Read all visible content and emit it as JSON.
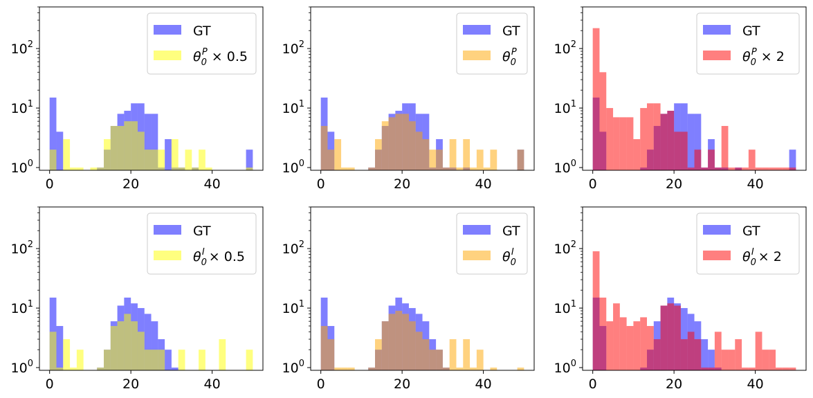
{
  "colors": {
    "gt": "#0000ff",
    "half": "#ffff00",
    "base": "#ffa500",
    "double": "#ff0000",
    "bar_alpha": 0.5
  },
  "chart_data": [
    {
      "type": "histogram",
      "scale_label": "×0.5",
      "row": "P",
      "x_ticks": [
        0,
        20,
        40
      ],
      "xlim": [
        -2.5,
        52.5
      ],
      "yscale": "log",
      "ylim": [
        0.9,
        500
      ],
      "y_ticks": [
        1,
        10,
        100
      ],
      "y_tick_labels": [
        {
          "base": "10",
          "exp": "0"
        },
        {
          "base": "10",
          "exp": "1"
        },
        {
          "base": "10",
          "exp": "2"
        }
      ],
      "legend_position": "top-right",
      "legend": [
        {
          "label": "GT",
          "color_key": "gt"
        },
        {
          "label_prefix": "θ",
          "label_sub": "0",
          "label_sup": "P",
          "label_suffix": " × 0.5",
          "color_key": "half"
        }
      ],
      "bin_edges_start": 0,
      "bin_width": 1.667,
      "series": [
        {
          "name": "GT",
          "color_key": "gt",
          "counts": [
            15,
            4,
            0,
            0,
            0,
            0,
            0,
            1,
            2,
            5,
            8,
            9,
            12,
            12,
            8,
            8,
            1,
            3,
            1,
            1,
            0,
            1,
            0,
            0,
            0,
            0,
            0,
            0,
            0,
            2
          ]
        },
        {
          "name": "θ0P × 0.5",
          "color_key": "half",
          "counts": [
            2,
            0,
            3,
            1,
            1,
            0,
            1,
            1,
            3,
            5,
            5,
            6,
            6,
            4,
            2,
            2,
            2,
            0,
            3,
            1,
            2,
            1,
            2,
            1,
            0,
            0,
            0,
            0,
            0,
            1
          ]
        }
      ]
    },
    {
      "type": "histogram",
      "scale_label": "×1",
      "row": "P",
      "x_ticks": [
        0,
        20,
        40
      ],
      "xlim": [
        -2.5,
        52.5
      ],
      "yscale": "log",
      "ylim": [
        0.9,
        500
      ],
      "y_ticks": [
        1,
        10,
        100
      ],
      "y_tick_labels": [
        {
          "base": "10",
          "exp": "0"
        },
        {
          "base": "10",
          "exp": "1"
        },
        {
          "base": "10",
          "exp": "2"
        }
      ],
      "legend_position": "top-right",
      "legend": [
        {
          "label": "GT",
          "color_key": "gt"
        },
        {
          "label_prefix": "θ",
          "label_sub": "0",
          "label_sup": "P",
          "label_suffix": "",
          "color_key": "base"
        }
      ],
      "bin_edges_start": 0,
      "bin_width": 1.667,
      "series": [
        {
          "name": "GT",
          "color_key": "gt",
          "counts": [
            15,
            4,
            0,
            0,
            0,
            0,
            0,
            1,
            2,
            5,
            8,
            9,
            12,
            12,
            8,
            8,
            1,
            3,
            1,
            1,
            0,
            1,
            0,
            0,
            0,
            0,
            0,
            0,
            0,
            2
          ]
        },
        {
          "name": "θ0P",
          "color_key": "base",
          "counts": [
            5,
            2,
            3,
            1,
            1,
            0,
            0,
            1,
            3,
            6,
            7,
            8,
            8,
            6,
            4,
            3,
            2,
            2,
            1,
            3,
            1,
            3,
            1,
            2,
            1,
            2,
            0,
            0,
            0,
            2
          ]
        }
      ]
    },
    {
      "type": "histogram",
      "scale_label": "×2",
      "row": "P",
      "x_ticks": [
        0,
        20,
        40
      ],
      "xlim": [
        -2.5,
        52.5
      ],
      "yscale": "log",
      "ylim": [
        0.9,
        500
      ],
      "y_ticks": [
        1,
        10,
        100
      ],
      "y_tick_labels": [
        {
          "base": "10",
          "exp": "0"
        },
        {
          "base": "10",
          "exp": "1"
        },
        {
          "base": "10",
          "exp": "2"
        }
      ],
      "legend_position": "top-right",
      "legend": [
        {
          "label": "GT",
          "color_key": "gt"
        },
        {
          "label_prefix": "θ",
          "label_sub": "0",
          "label_sup": "P",
          "label_suffix": " × 2",
          "color_key": "double"
        }
      ],
      "bin_edges_start": 0,
      "bin_width": 1.667,
      "series": [
        {
          "name": "GT",
          "color_key": "gt",
          "counts": [
            15,
            4,
            0,
            0,
            0,
            0,
            0,
            1,
            2,
            5,
            8,
            9,
            12,
            12,
            8,
            8,
            1,
            3,
            1,
            1,
            0,
            1,
            0,
            0,
            0,
            0,
            0,
            0,
            0,
            2
          ]
        },
        {
          "name": "θ0P × 2",
          "color_key": "double",
          "counts": [
            220,
            40,
            10,
            7,
            7,
            7,
            3,
            10,
            12,
            12,
            8,
            9,
            4,
            4,
            1,
            2,
            1,
            2,
            1,
            5,
            1,
            1,
            1,
            2,
            1,
            1,
            1,
            1,
            1,
            1
          ]
        }
      ]
    },
    {
      "type": "histogram",
      "scale_label": "×0.5",
      "row": "I",
      "x_ticks": [
        0,
        20,
        40
      ],
      "xlim": [
        -2.5,
        52.5
      ],
      "yscale": "log",
      "ylim": [
        0.9,
        500
      ],
      "y_ticks": [
        1,
        10,
        100
      ],
      "y_tick_labels": [
        {
          "base": "10",
          "exp": "0"
        },
        {
          "base": "10",
          "exp": "1"
        },
        {
          "base": "10",
          "exp": "2"
        }
      ],
      "legend_position": "top-right",
      "legend": [
        {
          "label": "GT",
          "color_key": "gt"
        },
        {
          "label_prefix": "θ",
          "label_sub": "0",
          "label_sup": "I",
          "label_suffix": " × 0.5",
          "color_key": "half"
        }
      ],
      "bin_edges_start": 0,
      "bin_width": 1.667,
      "series": [
        {
          "name": "GT",
          "color_key": "gt",
          "counts": [
            15,
            5,
            0,
            0,
            0,
            0,
            0,
            1,
            2,
            6,
            11,
            15,
            12,
            10,
            8,
            6,
            3,
            2,
            1,
            0,
            0,
            0,
            0,
            0,
            0,
            0,
            0,
            0,
            0,
            0
          ]
        },
        {
          "name": "θ0I × 0.5",
          "color_key": "half",
          "counts": [
            4,
            1,
            3,
            1,
            2,
            0,
            0,
            1,
            2,
            5,
            6,
            8,
            6,
            4,
            2,
            2,
            2,
            0,
            0,
            2,
            0,
            0,
            2,
            0,
            0,
            3,
            0,
            0,
            0,
            2
          ]
        }
      ]
    },
    {
      "type": "histogram",
      "scale_label": "×1",
      "row": "I",
      "x_ticks": [
        0,
        20,
        40
      ],
      "xlim": [
        -2.5,
        52.5
      ],
      "yscale": "log",
      "ylim": [
        0.9,
        500
      ],
      "y_ticks": [
        1,
        10,
        100
      ],
      "y_tick_labels": [
        {
          "base": "10",
          "exp": "0"
        },
        {
          "base": "10",
          "exp": "1"
        },
        {
          "base": "10",
          "exp": "2"
        }
      ],
      "legend_position": "top-right",
      "legend": [
        {
          "label": "GT",
          "color_key": "gt"
        },
        {
          "label_prefix": "θ",
          "label_sub": "0",
          "label_sup": "I",
          "label_suffix": "",
          "color_key": "base"
        }
      ],
      "bin_edges_start": 0,
      "bin_width": 1.667,
      "series": [
        {
          "name": "GT",
          "color_key": "gt",
          "counts": [
            15,
            5,
            0,
            0,
            0,
            0,
            0,
            1,
            2,
            6,
            11,
            15,
            12,
            10,
            8,
            6,
            3,
            2,
            1,
            0,
            0,
            0,
            0,
            0,
            0,
            0,
            0,
            0,
            0,
            0
          ]
        },
        {
          "name": "θ0I",
          "color_key": "base",
          "counts": [
            5,
            3,
            1,
            1,
            1,
            0,
            0,
            1,
            3,
            6,
            8,
            9,
            8,
            6,
            4,
            3,
            2,
            2,
            1,
            3,
            1,
            3,
            1,
            2,
            0,
            1,
            0,
            0,
            0,
            1
          ]
        }
      ]
    },
    {
      "type": "histogram",
      "scale_label": "×2",
      "row": "I",
      "x_ticks": [
        0,
        20,
        40
      ],
      "xlim": [
        -2.5,
        52.5
      ],
      "yscale": "log",
      "ylim": [
        0.9,
        500
      ],
      "y_ticks": [
        1,
        10,
        100
      ],
      "y_tick_labels": [
        {
          "base": "10",
          "exp": "0"
        },
        {
          "base": "10",
          "exp": "1"
        },
        {
          "base": "10",
          "exp": "2"
        }
      ],
      "legend_position": "top-right",
      "legend": [
        {
          "label": "GT",
          "color_key": "gt"
        },
        {
          "label_prefix": "θ",
          "label_sub": "0",
          "label_sup": "I",
          "label_suffix": " × 2",
          "color_key": "double"
        }
      ],
      "bin_edges_start": 0,
      "bin_width": 1.667,
      "series": [
        {
          "name": "GT",
          "color_key": "gt",
          "counts": [
            15,
            5,
            0,
            0,
            0,
            0,
            0,
            1,
            2,
            6,
            11,
            15,
            12,
            10,
            8,
            6,
            3,
            2,
            1,
            0,
            0,
            0,
            0,
            0,
            0,
            0,
            0,
            0,
            0,
            0
          ]
        },
        {
          "name": "θ0I × 2",
          "color_key": "double",
          "counts": [
            90,
            15,
            6,
            12,
            7,
            5,
            6,
            7,
            5,
            3,
            11,
            12,
            11,
            3,
            4,
            3,
            1,
            1,
            4,
            2,
            2,
            3,
            1,
            1,
            4,
            2,
            2,
            1,
            1,
            1
          ]
        }
      ]
    }
  ]
}
